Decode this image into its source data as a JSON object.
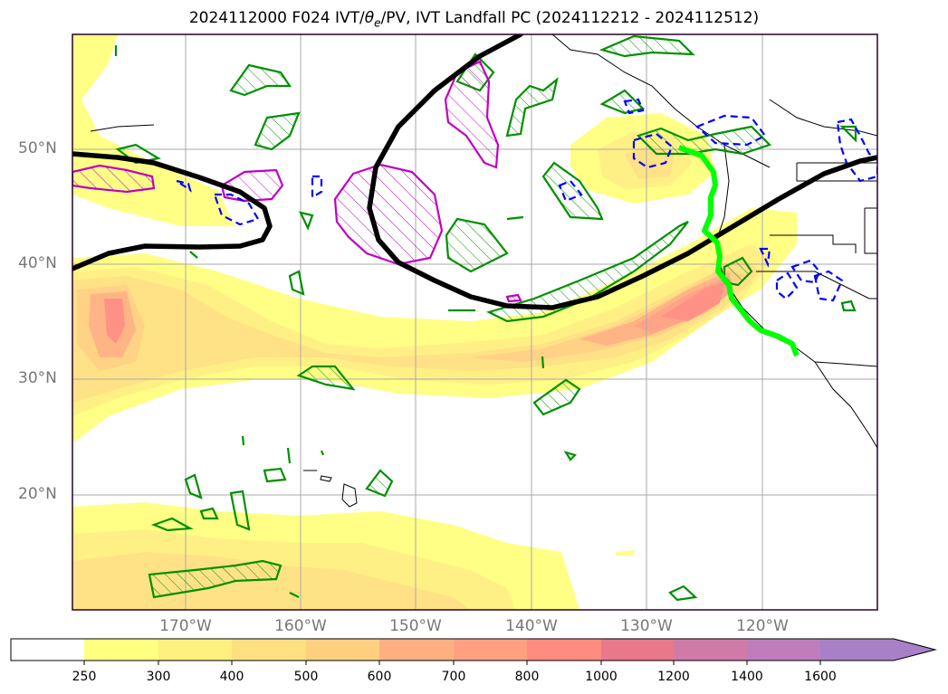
{
  "title": "2024112000 F024 IVT/θe/PV, IVT Landfall PC (2024112212 - 2024112512)",
  "title_parts": {
    "prefix": "2024112000 F024 IVT/",
    "theta": "θ",
    "sub": "e",
    "suffix": "/PV, IVT Landfall PC (2024112212 - 2024112512)"
  },
  "axes": {
    "lat_labels": [
      "50°N",
      "40°N",
      "30°N",
      "20°N"
    ],
    "lon_labels": [
      "170°W",
      "160°W",
      "150°W",
      "140°W",
      "130°W",
      "120°W"
    ]
  },
  "colorbar": {
    "ticks": [
      "250",
      "300",
      "400",
      "500",
      "600",
      "700",
      "800",
      "1000",
      "1200",
      "1400",
      "1600"
    ],
    "colors": [
      "#ffffff",
      "#ffff80",
      "#fff080",
      "#ffe080",
      "#ffd080",
      "#ffb080",
      "#ffa080",
      "#ff8c80",
      "#e8788a",
      "#d07aa8",
      "#c07dbe",
      "#a880c8"
    ]
  },
  "colors": {
    "ivt_low": "#ffff80",
    "ivt_mid": "#ffd080",
    "ivt_high": "#ff8c80",
    "theta_contour": "#000000",
    "pv_positive": "#009000",
    "pv_negative": "#0000ff",
    "pv_high": "#c000c0",
    "landfall_line": "#00ff00"
  }
}
